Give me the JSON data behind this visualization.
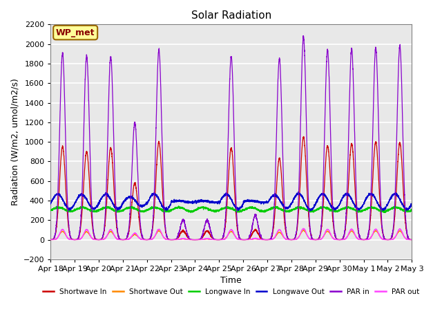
{
  "title": "Solar Radiation",
  "xlabel": "Time",
  "ylabel": "Radiation (W/m2, umol/m2/s)",
  "ylim": [
    -200,
    2200
  ],
  "yticks": [
    -200,
    0,
    200,
    400,
    600,
    800,
    1000,
    1200,
    1400,
    1600,
    1800,
    2000,
    2200
  ],
  "num_days": 15,
  "xtick_labels": [
    "Apr 18",
    "Apr 19",
    "Apr 20",
    "Apr 21",
    "Apr 22",
    "Apr 23",
    "Apr 24",
    "Apr 25",
    "Apr 26",
    "Apr 27",
    "Apr 28",
    "Apr 29",
    "Apr 30",
    "May 1",
    "May 2",
    "May 3"
  ],
  "legend_entries": [
    "Shortwave In",
    "Shortwave Out",
    "Longwave In",
    "Longwave Out",
    "PAR in",
    "PAR out"
  ],
  "legend_colors": [
    "#cc0000",
    "#ff8800",
    "#00cc00",
    "#0000cc",
    "#8800cc",
    "#ff44ff"
  ],
  "background_color": "#e8e8e8",
  "grid_color": "#ffffff",
  "annotation_text": "WP_met",
  "annotation_color": "#880000",
  "annotation_bg": "#ffff99",
  "annotation_border": "#996600",
  "sw_in_peaks": [
    950,
    900,
    940,
    580,
    1000,
    90,
    90,
    940,
    100,
    830,
    1050,
    960,
    980,
    1000,
    990
  ],
  "par_in_peaks": [
    1910,
    1880,
    1870,
    1200,
    1940,
    200,
    200,
    1870,
    250,
    1850,
    2070,
    1940,
    1950,
    1960,
    1980
  ],
  "lw_in_base": 310,
  "lw_out_base": 390,
  "figsize": [
    6.4,
    4.8
  ],
  "dpi": 100
}
